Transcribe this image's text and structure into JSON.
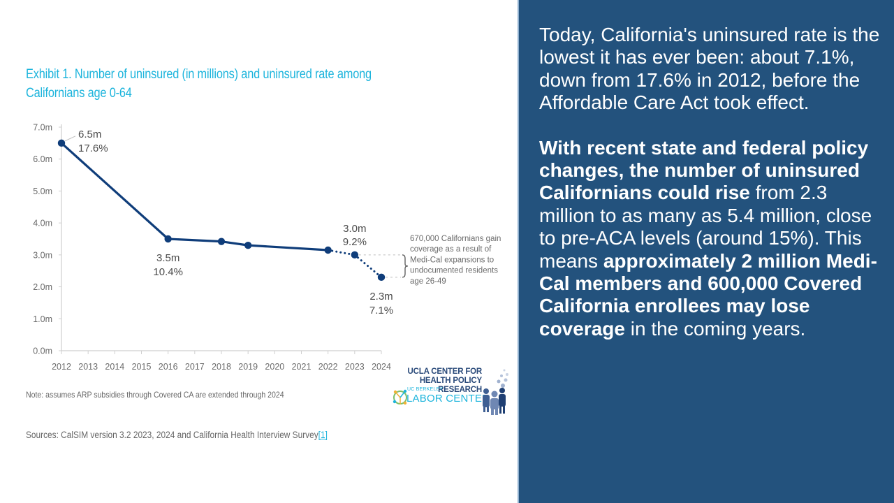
{
  "chart_data": {
    "type": "line",
    "title": "Exhibit 1. Number of uninsured (in millions) and uninsured rate among Californians age 0-64",
    "xlabel": "",
    "ylabel": "",
    "x_ticks": [
      "2012",
      "2013",
      "2014",
      "2015",
      "2016",
      "2017",
      "2018",
      "2019",
      "2020",
      "2021",
      "2022",
      "2023",
      "2024"
    ],
    "y_ticks": [
      "0.0m",
      "1.0m",
      "2.0m",
      "3.0m",
      "4.0m",
      "5.0m",
      "6.0m",
      "7.0m"
    ],
    "ylim": [
      0,
      7
    ],
    "xlim": [
      2012,
      2024
    ],
    "grid": false,
    "series": [
      {
        "name": "Uninsured (millions)",
        "color": "#0f3d7a",
        "points": [
          {
            "x": 2012,
            "y": 6.5,
            "style": "solid"
          },
          {
            "x": 2016,
            "y": 3.5,
            "style": "solid"
          },
          {
            "x": 2018,
            "y": 3.42,
            "style": "solid"
          },
          {
            "x": 2019,
            "y": 3.3,
            "style": "solid"
          },
          {
            "x": 2022,
            "y": 3.15,
            "style": "solid"
          },
          {
            "x": 2023,
            "y": 3.0,
            "style": "dotted"
          },
          {
            "x": 2024,
            "y": 2.3,
            "style": "dotted"
          }
        ]
      }
    ],
    "data_labels": [
      {
        "x": 2012,
        "value": "6.5m",
        "rate": "17.6%"
      },
      {
        "x": 2016,
        "value": "3.5m",
        "rate": "10.4%"
      },
      {
        "x": 2023,
        "value": "3.0m",
        "rate": "9.2%"
      },
      {
        "x": 2024,
        "value": "2.3m",
        "rate": "7.1%"
      }
    ],
    "annotation": {
      "lines": [
        "670,000 Californians gain",
        "coverage as a result of",
        "Medi-Cal expansions to",
        "undocumented residents",
        "age 26-49"
      ],
      "range": [
        2.3,
        3.0
      ]
    }
  },
  "chart_title": "Exhibit 1. Number of uninsured (in millions) and uninsured rate among Californians age 0-64",
  "note": "Note: assumes ARP subsidies through Covered CA are extended through 2024",
  "sources": {
    "text": "Sources: CalSIM version 3.2 2023, 2024 and California Health Interview Survey",
    "ref": "[1]"
  },
  "logos": {
    "ucla_line1": "UCLA CENTER FOR",
    "ucla_line2": "HEALTH POLICY RESEARCH",
    "labor_small": "UC BERKELEY",
    "labor": "LABOR CENTER"
  },
  "panel": {
    "p1": "Today, California's uninsured rate is the lowest it has ever been: about 7.1%, down from 17.6% in 2012, before the Affordable Care Act took effect.",
    "p2_bold1": "With recent state and federal policy changes, the number of uninsured Californians could rise",
    "p2_text1": " from 2.3 million to as many as 5.4 million, close to pre-ACA levels (around 15%). This means ",
    "p2_bold2": "approximately 2 million Medi-Cal members and 600,000 Covered California enrollees may lose coverage",
    "p2_text2": " in the coming years."
  }
}
